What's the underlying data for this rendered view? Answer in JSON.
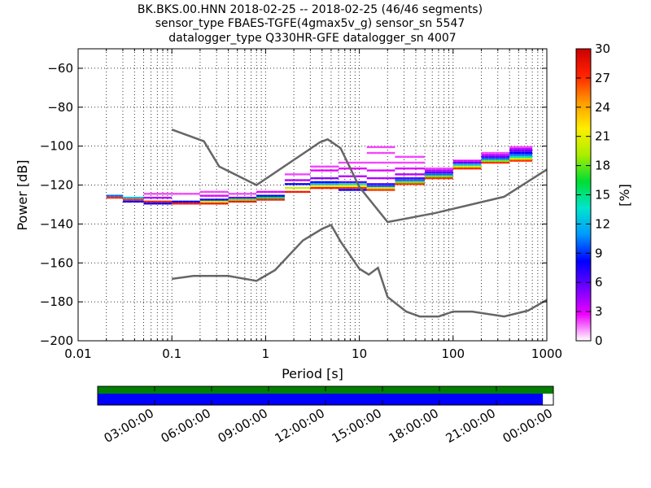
{
  "chart_data": {
    "type": "heatmap",
    "title_lines": [
      "BK.BKS.00.HNN   2018-02-25 -- 2018-02-25  (46/46 segments)",
      "sensor_type FBAES-TGFE(4gmax5v_g) sensor_sn 5547",
      "datalogger_type Q330HR-GFE datalogger_sn 4007"
    ],
    "xlabel": "Period [s]",
    "ylabel": "Power [dB]",
    "x_scale": "log",
    "xlim": [
      0.01,
      1000
    ],
    "ylim": [
      -200,
      -50
    ],
    "x_ticks": [
      {
        "value": 0.01,
        "label": "0.01"
      },
      {
        "value": 0.1,
        "label": "0.1"
      },
      {
        "value": 1,
        "label": "1"
      },
      {
        "value": 10,
        "label": "10"
      },
      {
        "value": 100,
        "label": "100"
      },
      {
        "value": 1000,
        "label": "1000"
      }
    ],
    "y_ticks": [
      {
        "value": -60,
        "label": "−60"
      },
      {
        "value": -80,
        "label": "−80"
      },
      {
        "value": -100,
        "label": "−100"
      },
      {
        "value": -120,
        "label": "−120"
      },
      {
        "value": -140,
        "label": "−140"
      },
      {
        "value": -160,
        "label": "−160"
      },
      {
        "value": -180,
        "label": "−180"
      },
      {
        "value": -200,
        "label": "−200"
      }
    ],
    "grid": true,
    "colorbar": {
      "label": "[%]",
      "range": [
        0,
        30
      ],
      "ticks": [
        "0",
        "3",
        "6",
        "9",
        "12",
        "15",
        "18",
        "21",
        "24",
        "27",
        "30"
      ],
      "stops": [
        "#ffffff",
        "#ee00ff",
        "#7000ff",
        "#0000ff",
        "#0099ff",
        "#00e5cc",
        "#00dd33",
        "#aaee00",
        "#ffee00",
        "#ff9900",
        "#ff2200",
        "#cc0000"
      ]
    },
    "curves": [
      {
        "color": "#666666",
        "points": [
          [
            0.1,
            -91.5
          ],
          [
            0.22,
            -97.5
          ],
          [
            0.32,
            -110.5
          ],
          [
            0.8,
            -120
          ],
          [
            3.8,
            -98
          ],
          [
            4.6,
            -96.5
          ],
          [
            6.3,
            -101
          ],
          [
            10,
            -121
          ],
          [
            20,
            -139
          ],
          [
            63,
            -134.5
          ],
          [
            350,
            -126
          ],
          [
            1000,
            -112
          ]
        ]
      },
      {
        "color": "#666666",
        "points": [
          [
            0.1,
            -168.2
          ],
          [
            0.17,
            -166.7
          ],
          [
            0.4,
            -166.7
          ],
          [
            0.8,
            -169.2
          ],
          [
            1.26,
            -163.7
          ],
          [
            2.5,
            -148.5
          ],
          [
            4,
            -142.5
          ],
          [
            5,
            -140.5
          ],
          [
            6.3,
            -149
          ],
          [
            10,
            -163
          ],
          [
            12.6,
            -166
          ],
          [
            15.8,
            -162.5
          ],
          [
            20,
            -177.5
          ],
          [
            31.6,
            -185
          ],
          [
            44,
            -187.5
          ],
          [
            70,
            -187.5
          ],
          [
            100,
            -185
          ],
          [
            160,
            -185
          ],
          [
            350,
            -187.5
          ],
          [
            630,
            -184.5
          ],
          [
            1000,
            -179
          ]
        ]
      }
    ],
    "clusters": [
      {
        "x_range": [
          0.02,
          0.03
        ],
        "y_values": [
          -126.5,
          -125.5
        ],
        "values": [
          27,
          10
        ]
      },
      {
        "x_range": [
          0.03,
          0.05
        ],
        "y_values": [
          -127.5,
          -126.5,
          -128.5
        ],
        "values": [
          27,
          12,
          8
        ]
      },
      {
        "x_range": [
          0.05,
          0.1
        ],
        "y_values": [
          -128.5,
          -129.5,
          -126.5,
          -124.5
        ],
        "values": [
          28,
          8,
          4,
          2
        ]
      },
      {
        "x_range": [
          0.1,
          0.2
        ],
        "y_values": [
          -129.5,
          -128.5,
          -124.5
        ],
        "values": [
          28,
          8,
          2
        ]
      },
      {
        "x_range": [
          0.2,
          0.4
        ],
        "y_values": [
          -129.5,
          -128.5,
          -127.5,
          -125.5,
          -123.5
        ],
        "values": [
          28,
          20,
          8,
          3,
          2
        ]
      },
      {
        "x_range": [
          0.4,
          0.8
        ],
        "y_values": [
          -128.5,
          -127.5,
          -126.5,
          -124.5
        ],
        "values": [
          28,
          18,
          6,
          2
        ]
      },
      {
        "x_range": [
          0.8,
          1.6
        ],
        "y_values": [
          -127.5,
          -126.5,
          -125.5,
          -123.5
        ],
        "values": [
          28,
          16,
          8,
          3
        ]
      },
      {
        "x_range": [
          1.6,
          3
        ],
        "y_values": [
          -123.5,
          -121.5,
          -119.5,
          -117.5,
          -114.5
        ],
        "values": [
          28,
          20,
          8,
          4,
          2
        ]
      },
      {
        "x_range": [
          3,
          6
        ],
        "y_values": [
          -121.5,
          -120.5,
          -119.5,
          -118.5,
          -116.5,
          -112.5,
          -110.5
        ],
        "values": [
          28,
          22,
          12,
          8,
          5,
          3,
          2
        ]
      },
      {
        "x_range": [
          6,
          12
        ],
        "y_values": [
          -121.5,
          -120.5,
          -119.5,
          -122.5,
          -118.5,
          -115.5,
          -111.5,
          -108.5
        ],
        "values": [
          27,
          22,
          14,
          8,
          6,
          4,
          3,
          2
        ]
      },
      {
        "x_range": [
          12,
          24
        ],
        "y_values": [
          -122.5,
          -121.5,
          -120.5,
          -119.5,
          -116.5,
          -112.5,
          -108.5,
          -103.5,
          -100.5
        ],
        "values": [
          27,
          20,
          10,
          6,
          4,
          3,
          2,
          2,
          2
        ]
      },
      {
        "x_range": [
          24,
          50
        ],
        "y_values": [
          -119.5,
          -118.5,
          -117.5,
          -116.5,
          -114.5,
          -111.5,
          -108.5,
          -105.5
        ],
        "values": [
          27,
          18,
          10,
          6,
          4,
          3,
          2,
          2
        ]
      },
      {
        "x_range": [
          50,
          100
        ],
        "y_values": [
          -116.5,
          -115.5,
          -114.5,
          -113.5,
          -112.5,
          -111.5
        ],
        "values": [
          27,
          18,
          10,
          6,
          4,
          2
        ]
      },
      {
        "x_range": [
          100,
          200
        ],
        "y_values": [
          -111.5,
          -110.5,
          -109.5,
          -108.5,
          -107.5
        ],
        "values": [
          27,
          20,
          12,
          6,
          3
        ]
      },
      {
        "x_range": [
          200,
          400
        ],
        "y_values": [
          -108.5,
          -107.5,
          -106.5,
          -105.5,
          -104.5,
          -103.5
        ],
        "values": [
          27,
          18,
          10,
          6,
          4,
          2
        ]
      },
      {
        "x_range": [
          400,
          700
        ],
        "y_values": [
          -107.5,
          -106.5,
          -105.5,
          -104.5,
          -103.5,
          -102.5,
          -101.5,
          -100.5
        ],
        "values": [
          27,
          20,
          14,
          10,
          8,
          6,
          4,
          2
        ]
      }
    ],
    "coverage_bar": {
      "tick_labels": [
        "03:00:00",
        "06:00:00",
        "09:00:00",
        "12:00:00",
        "15:00:00",
        "18:00:00",
        "21:00:00",
        "00:00:00"
      ],
      "top_color": "#008000",
      "bottom_color": "#0000ff",
      "bottom_fraction": 0.977
    }
  }
}
